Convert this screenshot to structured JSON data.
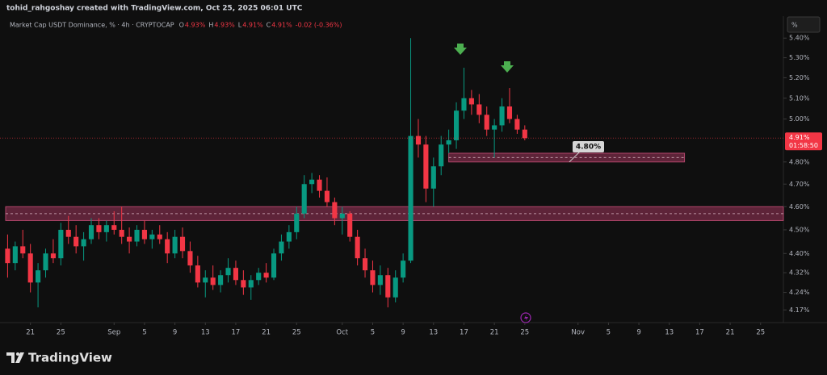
{
  "header": "tohid_rahgoshay created with TradingView.com, Oct 25, 2025 06:01 UTC",
  "footer": "TradingView",
  "chart_data": {
    "type": "candlestick",
    "title": "Market Cap USDT Dominance, % · 4h · CRYPTOCAP",
    "ohlc_legend": [
      {
        "label": "O",
        "value": "4.93%"
      },
      {
        "label": "H",
        "value": "4.93%"
      },
      {
        "label": "L",
        "value": "4.91%"
      },
      {
        "label": "C",
        "value": "4.91%"
      }
    ],
    "change": "-0.02 (-0.36%)",
    "y_unit": "%",
    "log_scale": true,
    "up_color": "#089981",
    "down_color": "#f23645",
    "zone_color": "#7a2c48",
    "x": [
      "Aug 18",
      "Aug 19",
      "Aug 20",
      "Aug 21",
      "Aug 22",
      "Aug 23",
      "Aug 24",
      "Aug 25",
      "Aug 26",
      "Aug 27",
      "Aug 28",
      "Aug 29",
      "Aug 30",
      "Aug 31",
      "Sep 1",
      "Sep 2",
      "Sep 3",
      "Sep 4",
      "Sep 5",
      "Sep 6",
      "Sep 7",
      "Sep 8",
      "Sep 9",
      "Sep 10",
      "Sep 11",
      "Sep 12",
      "Sep 13",
      "Sep 14",
      "Sep 15",
      "Sep 16",
      "Sep 17",
      "Sep 18",
      "Sep 19",
      "Sep 20",
      "Sep 21",
      "Sep 22",
      "Sep 23",
      "Sep 24",
      "Sep 25",
      "Sep 26",
      "Sep 27",
      "Sep 28",
      "Sep 29",
      "Sep 30",
      "Oct 1",
      "Oct 2",
      "Oct 3",
      "Oct 4",
      "Oct 5",
      "Oct 6",
      "Oct 7",
      "Oct 8",
      "Oct 9",
      "Oct 10",
      "Oct 11",
      "Oct 12",
      "Oct 13",
      "Oct 14",
      "Oct 15",
      "Oct 16",
      "Oct 17",
      "Oct 18",
      "Oct 19",
      "Oct 20",
      "Oct 21",
      "Oct 22",
      "Oct 23",
      "Oct 24",
      "Oct 25"
    ],
    "open": [
      4.42,
      4.36,
      4.43,
      4.4,
      4.28,
      4.33,
      4.4,
      4.38,
      4.5,
      4.47,
      4.43,
      4.46,
      4.52,
      4.49,
      4.52,
      4.5,
      4.47,
      4.45,
      4.5,
      4.46,
      4.48,
      4.46,
      4.4,
      4.47,
      4.41,
      4.35,
      4.28,
      4.3,
      4.27,
      4.31,
      4.34,
      4.29,
      4.26,
      4.29,
      4.32,
      4.3,
      4.4,
      4.45,
      4.49,
      4.57,
      4.7,
      4.72,
      4.67,
      4.62,
      4.55,
      4.57,
      4.47,
      4.38,
      4.33,
      4.27,
      4.31,
      4.22,
      4.3,
      4.37,
      4.92,
      4.88,
      4.68,
      4.78,
      4.88,
      4.9,
      5.04,
      5.1,
      5.07,
      5.02,
      4.95,
      4.97,
      5.06,
      5.0,
      4.95
    ],
    "high": [
      4.48,
      4.45,
      4.5,
      4.44,
      4.36,
      4.42,
      4.46,
      4.53,
      4.56,
      4.52,
      4.49,
      4.55,
      4.55,
      4.54,
      4.58,
      4.6,
      4.51,
      4.52,
      4.54,
      4.5,
      4.52,
      4.49,
      4.5,
      4.51,
      4.45,
      4.39,
      4.33,
      4.35,
      4.33,
      4.38,
      4.37,
      4.33,
      4.31,
      4.34,
      4.36,
      4.42,
      4.48,
      4.52,
      4.6,
      4.74,
      4.75,
      4.74,
      4.73,
      4.64,
      4.6,
      4.58,
      4.5,
      4.42,
      4.37,
      4.35,
      4.34,
      4.33,
      4.4,
      5.4,
      5.0,
      4.92,
      4.82,
      4.92,
      4.95,
      5.08,
      5.25,
      5.14,
      5.12,
      5.06,
      5.0,
      5.1,
      5.15,
      5.02,
      4.97
    ],
    "low": [
      4.3,
      4.33,
      4.38,
      4.24,
      4.18,
      4.3,
      4.36,
      4.35,
      4.44,
      4.4,
      4.37,
      4.44,
      4.46,
      4.45,
      4.48,
      4.44,
      4.4,
      4.43,
      4.44,
      4.42,
      4.44,
      4.36,
      4.38,
      4.38,
      4.32,
      4.26,
      4.22,
      4.25,
      4.24,
      4.28,
      4.27,
      4.23,
      4.21,
      4.27,
      4.28,
      4.29,
      4.37,
      4.42,
      4.46,
      4.55,
      4.66,
      4.64,
      4.6,
      4.52,
      4.48,
      4.45,
      4.35,
      4.3,
      4.24,
      4.23,
      4.18,
      4.2,
      4.28,
      4.36,
      4.82,
      4.62,
      4.6,
      4.74,
      4.84,
      4.86,
      5.0,
      5.02,
      4.98,
      4.92,
      4.82,
      4.94,
      4.98,
      4.93,
      4.9
    ],
    "close": [
      4.36,
      4.43,
      4.4,
      4.28,
      4.33,
      4.4,
      4.38,
      4.5,
      4.47,
      4.43,
      4.46,
      4.52,
      4.49,
      4.52,
      4.5,
      4.47,
      4.45,
      4.5,
      4.46,
      4.48,
      4.46,
      4.4,
      4.47,
      4.41,
      4.35,
      4.28,
      4.3,
      4.27,
      4.31,
      4.34,
      4.29,
      4.26,
      4.29,
      4.32,
      4.3,
      4.4,
      4.45,
      4.49,
      4.57,
      4.7,
      4.72,
      4.67,
      4.62,
      4.55,
      4.57,
      4.47,
      4.38,
      4.33,
      4.27,
      4.31,
      4.22,
      4.3,
      4.37,
      4.92,
      4.88,
      4.68,
      4.78,
      4.88,
      4.9,
      5.04,
      5.1,
      5.07,
      5.02,
      4.95,
      4.97,
      5.06,
      5.0,
      4.95,
      4.91
    ],
    "xlim": [
      "Aug 17",
      "Nov 28"
    ],
    "xticks": [
      {
        "value": "Aug 21",
        "label": "21"
      },
      {
        "value": "Aug 25",
        "label": "25"
      },
      {
        "value": "Sep 1",
        "label": "Sep"
      },
      {
        "value": "Sep 5",
        "label": "5"
      },
      {
        "value": "Sep 9",
        "label": "9"
      },
      {
        "value": "Sep 13",
        "label": "13"
      },
      {
        "value": "Sep 17",
        "label": "17"
      },
      {
        "value": "Sep 21",
        "label": "21"
      },
      {
        "value": "Sep 25",
        "label": "25"
      },
      {
        "value": "Oct 1",
        "label": "Oct"
      },
      {
        "value": "Oct 5",
        "label": "5"
      },
      {
        "value": "Oct 9",
        "label": "9"
      },
      {
        "value": "Oct 13",
        "label": "13"
      },
      {
        "value": "Oct 17",
        "label": "17"
      },
      {
        "value": "Oct 21",
        "label": "21"
      },
      {
        "value": "Oct 25",
        "label": "25"
      },
      {
        "value": "Nov 1",
        "label": "Nov"
      },
      {
        "value": "Nov 5",
        "label": "5"
      },
      {
        "value": "Nov 9",
        "label": "9"
      },
      {
        "value": "Nov 13",
        "label": "13"
      },
      {
        "value": "Nov 17",
        "label": "17"
      },
      {
        "value": "Nov 21",
        "label": "21"
      },
      {
        "value": "Nov 25",
        "label": "25"
      }
    ],
    "ylim": [
      4.12,
      5.43
    ],
    "yticks": [
      {
        "value": 5.4,
        "label": "5.40%"
      },
      {
        "value": 5.3,
        "label": "5.30%"
      },
      {
        "value": 5.2,
        "label": "5.20%"
      },
      {
        "value": 5.1,
        "label": "5.10%"
      },
      {
        "value": 5.0,
        "label": "5.00%"
      },
      {
        "value": 4.8,
        "label": "4.80%"
      },
      {
        "value": 4.7,
        "label": "4.70%"
      },
      {
        "value": 4.6,
        "label": "4.60%"
      },
      {
        "value": 4.5,
        "label": "4.50%"
      },
      {
        "value": 4.4,
        "label": "4.40%"
      },
      {
        "value": 4.32,
        "label": "4.32%"
      },
      {
        "value": 4.24,
        "label": "4.24%"
      },
      {
        "value": 4.17,
        "label": "4.17%"
      }
    ],
    "last_price": {
      "value": 4.91,
      "label": "4.91%",
      "countdown": "01:58:50"
    },
    "zones": [
      {
        "low": 4.54,
        "high": 4.6,
        "from": "Aug 17",
        "to": "Nov 28"
      },
      {
        "low": 4.8,
        "high": 4.84,
        "from": "Oct 15",
        "to": "Nov 15"
      }
    ],
    "level_label": {
      "value": 4.8,
      "label": "4.80%"
    }
  }
}
